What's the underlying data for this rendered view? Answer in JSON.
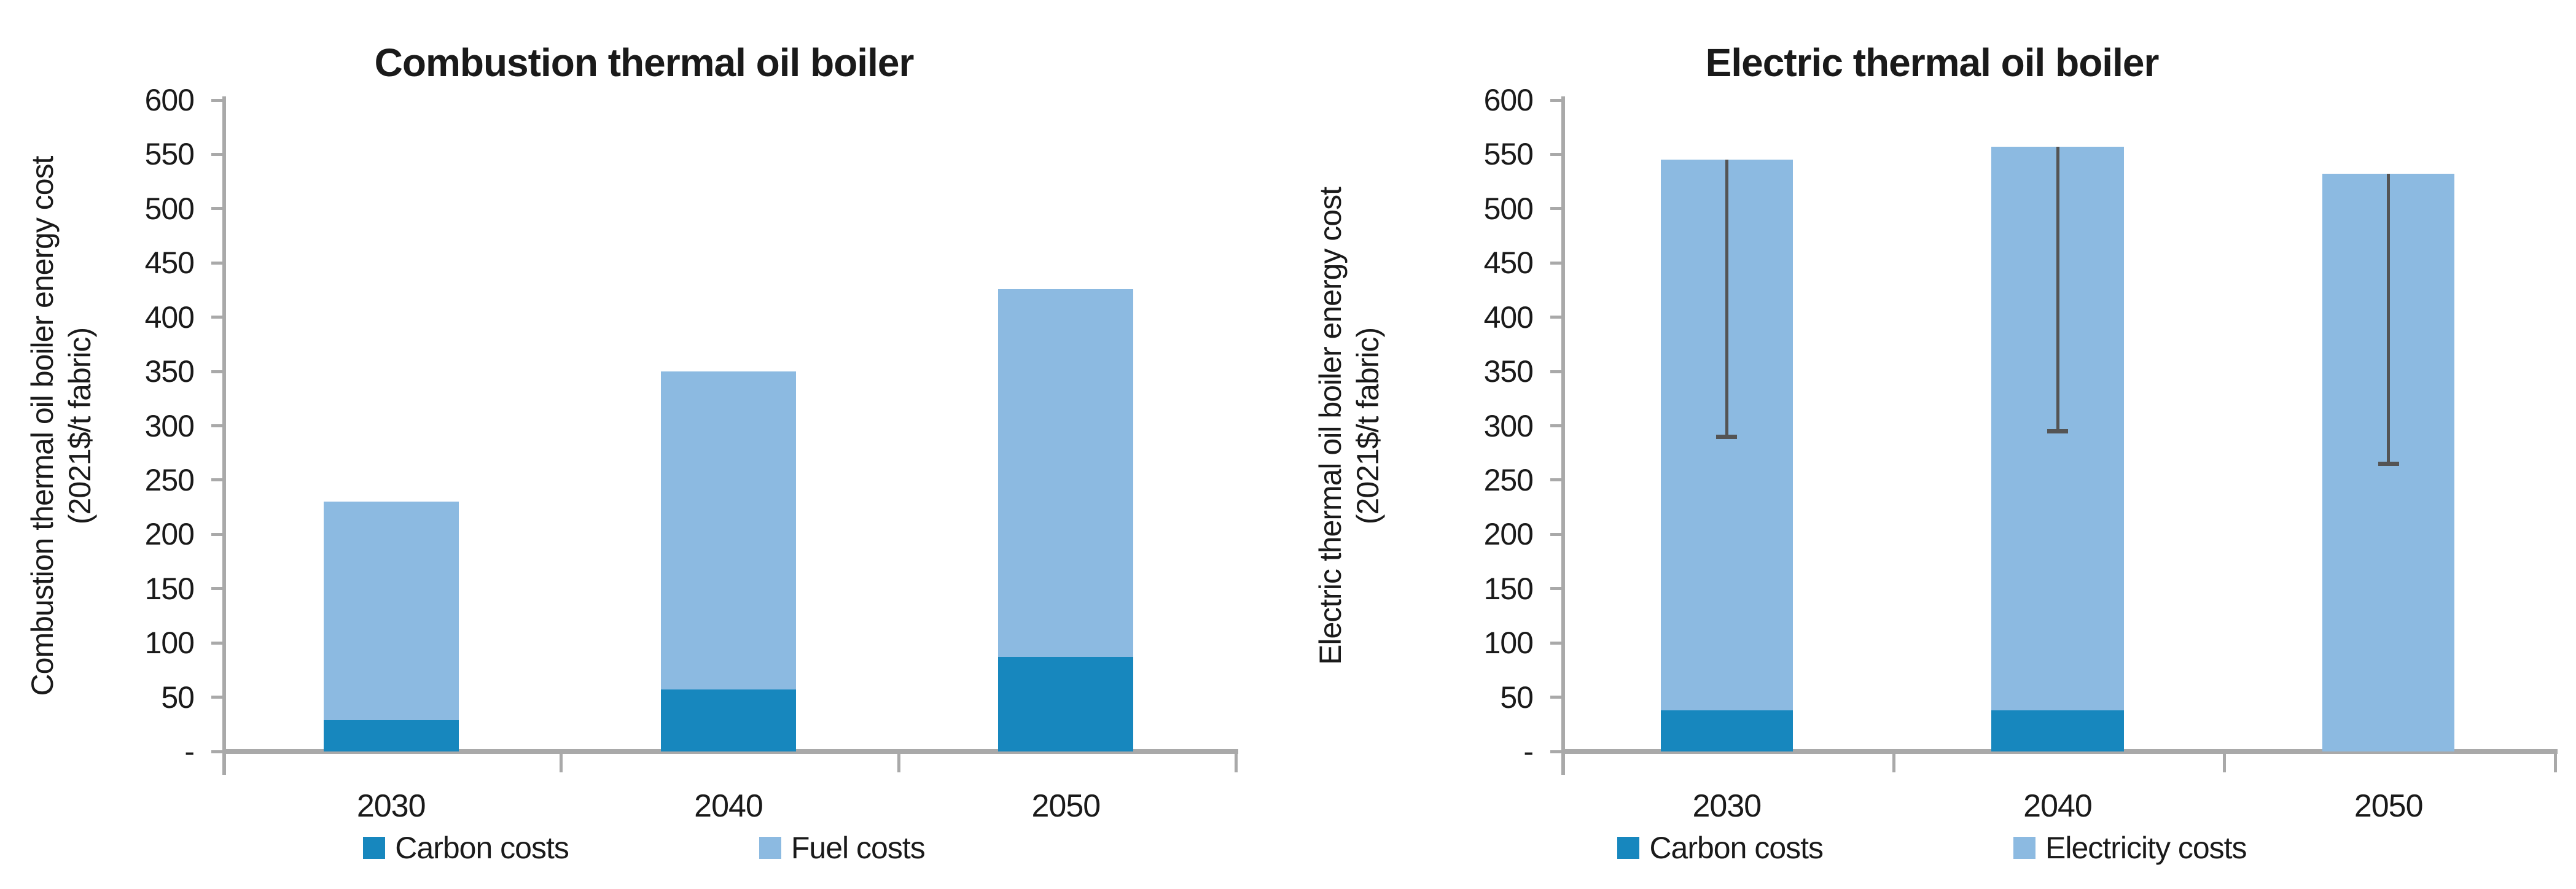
{
  "figure": {
    "background_color": "#ffffff",
    "text_color": "#1a1a1a",
    "axis_color": "#a9a9a9"
  },
  "chart_data": [
    {
      "type": "bar",
      "variant": "stacked-column",
      "title": "Combustion thermal oil boiler",
      "ylabel_line1": "Combustion thermal oil boiler energy cost",
      "ylabel_line2": "(2021$/t fabric)",
      "categories": [
        "2030",
        "2040",
        "2050"
      ],
      "series": [
        {
          "name": "Carbon costs",
          "color": "#1787be",
          "values": [
            29,
            57,
            87
          ]
        },
        {
          "name": "Fuel costs",
          "color": "#8cbae1",
          "values": [
            201,
            293,
            339
          ]
        }
      ],
      "stack_totals": [
        230,
        350,
        426
      ],
      "ylim": [
        0,
        600
      ],
      "ytick_step": 50,
      "ytick_labels": [
        "600",
        "550",
        "500",
        "450",
        "400",
        "350",
        "300",
        "250",
        "200",
        "150",
        "100",
        "50",
        "-"
      ],
      "grid": false,
      "legend_position": "bottom",
      "legend_entries": [
        "Carbon costs",
        "Fuel costs"
      ]
    },
    {
      "type": "bar",
      "variant": "stacked-column",
      "title": "Electric thermal oil boiler",
      "ylabel_line1": "Electric thermal oil boiler energy cost",
      "ylabel_line2": "(2021$/t fabric)",
      "categories": [
        "2030",
        "2040",
        "2050"
      ],
      "series": [
        {
          "name": "Carbon costs",
          "color": "#1787be",
          "values": [
            38,
            38,
            0
          ]
        },
        {
          "name": "Electricity costs",
          "color": "#8cbae1",
          "values": [
            507,
            519,
            532
          ]
        }
      ],
      "stack_totals": [
        545,
        557,
        532
      ],
      "error_bars": {
        "color": "#545454",
        "top": [
          545,
          557,
          532
        ],
        "min": [
          290,
          295,
          265
        ]
      },
      "ylim": [
        0,
        600
      ],
      "ytick_step": 50,
      "ytick_labels": [
        "600",
        "550",
        "500",
        "450",
        "400",
        "350",
        "300",
        "250",
        "200",
        "150",
        "100",
        "50",
        "-"
      ],
      "grid": false,
      "legend_position": "bottom",
      "legend_entries": [
        "Carbon costs",
        "Electricity costs"
      ]
    }
  ]
}
